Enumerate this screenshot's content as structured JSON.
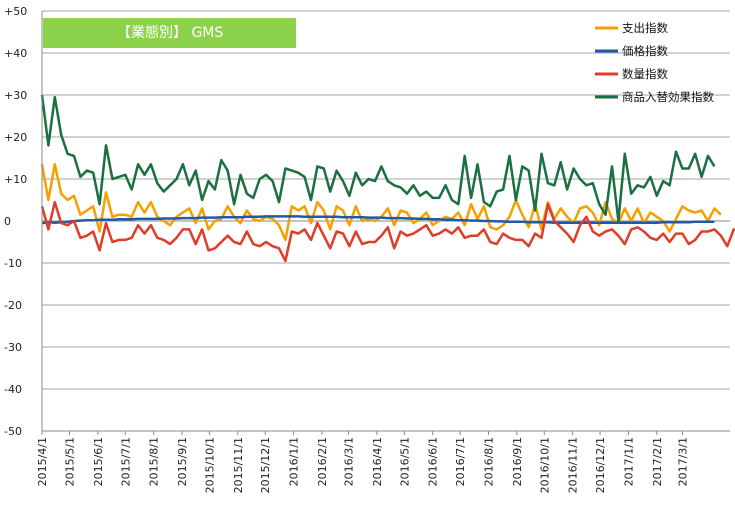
{
  "chart_data": {
    "type": "line",
    "title": "【業態別】 GMS",
    "xlabel": "",
    "ylabel": "",
    "ylim": [
      -50,
      50
    ],
    "y_ticks": [
      "+50",
      "+40",
      "+30",
      "+20",
      "+10",
      "0",
      "-10",
      "-20",
      "-30",
      "-40",
      "-50"
    ],
    "y_tick_values": [
      50,
      40,
      30,
      20,
      10,
      0,
      -10,
      -20,
      -30,
      -40,
      -50
    ],
    "x_tick_labels": [
      "2015/4/1",
      "2015/5/1",
      "2015/6/1",
      "2015/7/1",
      "2015/8/1",
      "2015/9/1",
      "2015/10/1",
      "2015/11/1",
      "2015/12/1",
      "2016/1/1",
      "2016/2/1",
      "2016/3/1",
      "2016/4/1",
      "2016/5/1",
      "2016/6/1",
      "2016/7/1",
      "2016/8/1",
      "2016/9/1",
      "2016/10/1",
      "2016/11/1",
      "2016/12/1",
      "2017/1/1",
      "2017/2/1",
      "2017/3/1"
    ],
    "x_start": "2015/4/1",
    "x_end": "2017/4/22",
    "x_unit": "weekly",
    "grid": "horizontal",
    "legend_position": "top-right",
    "colors": {
      "title_bg": "#8cd24b",
      "axis": "#888888",
      "grid": "#a6a6a6"
    },
    "series": [
      {
        "name": "支出指数",
        "color": "#f5a000",
        "values": [
          13.5,
          5.0,
          13.5,
          6.5,
          5.0,
          6.0,
          1.5,
          2.5,
          3.5,
          -2.5,
          6.8,
          1.0,
          1.5,
          1.5,
          1.0,
          4.5,
          2.0,
          4.5,
          1.0,
          0.0,
          -1.0,
          1.0,
          2.0,
          3.0,
          -0.5,
          3.0,
          -2.0,
          0.0,
          0.5,
          3.5,
          1.0,
          -0.5,
          2.5,
          0.5,
          0.0,
          1.0,
          0.5,
          -1.0,
          -4.5,
          3.5,
          2.5,
          3.5,
          -0.5,
          4.5,
          2.5,
          -2.0,
          3.5,
          2.5,
          -1.0,
          3.5,
          0.0,
          0.5,
          0.0,
          1.0,
          3.0,
          -1.0,
          2.5,
          2.0,
          -0.5,
          0.5,
          2.0,
          -1.0,
          0.0,
          1.0,
          0.5,
          2.0,
          -1.0,
          4.0,
          0.5,
          3.5,
          -1.5,
          -2.0,
          -1.0,
          1.0,
          5.0,
          1.5,
          -1.5,
          4.0,
          -2.0,
          4.5,
          0.5,
          3.0,
          1.0,
          -0.5,
          3.0,
          3.5,
          2.0,
          -1.0,
          4.5,
          0.5,
          -0.5,
          3.0,
          0.0,
          3.0,
          -0.5,
          2.0,
          1.0,
          0.0,
          -2.5,
          0.5,
          3.5,
          2.5,
          2.0,
          2.5,
          0.0,
          3.0,
          1.5
        ]
      },
      {
        "name": "価格指数",
        "color": "#1f5aa8",
        "values": [
          -0.5,
          -0.3,
          -0.4,
          -0.3,
          -0.2,
          0.0,
          0.1,
          0.2,
          0.2,
          0.3,
          0.3,
          0.3,
          0.4,
          0.4,
          0.4,
          0.5,
          0.5,
          0.5,
          0.5,
          0.6,
          0.6,
          0.6,
          0.7,
          0.7,
          0.7,
          0.8,
          0.8,
          0.8,
          0.9,
          0.9,
          0.9,
          0.9,
          1.0,
          1.0,
          1.0,
          1.1,
          1.1,
          1.1,
          1.1,
          1.1,
          1.1,
          1.0,
          1.0,
          1.0,
          1.0,
          1.0,
          1.0,
          0.9,
          0.9,
          0.9,
          0.9,
          0.8,
          0.8,
          0.8,
          0.7,
          0.7,
          0.7,
          0.6,
          0.6,
          0.5,
          0.5,
          0.4,
          0.4,
          0.3,
          0.3,
          0.2,
          0.2,
          0.1,
          0.1,
          0.0,
          0.0,
          -0.1,
          -0.1,
          -0.2,
          -0.2,
          -0.2,
          -0.3,
          -0.3,
          -0.3,
          -0.3,
          -0.4,
          -0.4,
          -0.4,
          -0.4,
          -0.4,
          -0.4,
          -0.4,
          -0.4,
          -0.4,
          -0.4,
          -0.4,
          -0.4,
          -0.4,
          -0.4,
          -0.4,
          -0.4,
          -0.4,
          -0.3,
          -0.3,
          -0.3,
          -0.3,
          -0.3,
          -0.2,
          -0.2,
          -0.2,
          -0.2
        ]
      },
      {
        "name": "数量指数",
        "color": "#e03c28",
        "values": [
          3.5,
          -2.0,
          4.5,
          -0.5,
          -1.0,
          0.0,
          -4.0,
          -3.5,
          -2.5,
          -7.0,
          -0.5,
          -5.0,
          -4.5,
          -4.5,
          -4.0,
          -1.0,
          -3.0,
          -1.0,
          -4.0,
          -4.5,
          -5.5,
          -4.0,
          -2.0,
          -2.0,
          -5.5,
          -2.0,
          -7.0,
          -6.5,
          -5.0,
          -3.5,
          -5.0,
          -5.5,
          -2.5,
          -5.5,
          -6.0,
          -5.0,
          -6.0,
          -6.5,
          -9.5,
          -2.5,
          -3.0,
          -2.0,
          -4.5,
          -0.5,
          -3.5,
          -6.5,
          -2.5,
          -3.0,
          -6.0,
          -2.5,
          -5.5,
          -5.0,
          -5.0,
          -3.5,
          -1.5,
          -6.5,
          -2.5,
          -3.5,
          -3.0,
          -2.0,
          -1.0,
          -3.5,
          -3.0,
          -2.0,
          -3.0,
          -1.5,
          -4.0,
          -3.5,
          -3.5,
          -2.0,
          -5.0,
          -5.5,
          -3.0,
          -4.0,
          -4.5,
          -4.5,
          -6.0,
          -3.0,
          -4.0,
          4.0,
          0.0,
          -1.5,
          -3.0,
          -5.0,
          -1.0,
          1.0,
          -2.5,
          -3.5,
          -2.5,
          -2.0,
          -3.5,
          -5.5,
          -2.0,
          -1.5,
          -2.5,
          -4.0,
          -4.5,
          -3.0,
          -5.0,
          -3.0,
          -3.0,
          -5.5,
          -4.5,
          -2.5,
          -2.5,
          -2.0,
          -3.5,
          -6.0,
          -2.0,
          -2.5
        ]
      },
      {
        "name": "商品入替効果指数",
        "color": "#1a7040",
        "values": [
          30.0,
          18.0,
          29.5,
          20.5,
          16.0,
          15.5,
          10.5,
          12.0,
          11.5,
          4.0,
          18.0,
          10.0,
          10.5,
          11.0,
          7.5,
          13.5,
          11.0,
          13.5,
          9.0,
          7.0,
          8.5,
          10.0,
          13.5,
          8.5,
          12.0,
          5.0,
          9.5,
          7.5,
          14.5,
          12.0,
          4.0,
          11.0,
          6.5,
          5.5,
          10.0,
          11.0,
          9.5,
          4.5,
          12.5,
          12.0,
          11.5,
          10.5,
          5.0,
          13.0,
          12.5,
          7.0,
          12.0,
          9.5,
          6.0,
          11.5,
          8.5,
          10.0,
          9.5,
          13.0,
          9.5,
          8.5,
          8.0,
          6.5,
          8.5,
          6.0,
          7.0,
          5.5,
          5.5,
          8.5,
          5.0,
          4.0,
          15.5,
          5.5,
          13.5,
          4.5,
          3.5,
          7.0,
          7.5,
          15.5,
          5.0,
          13.0,
          12.0,
          2.5,
          16.0,
          9.0,
          8.5,
          14.0,
          7.5,
          12.5,
          10.0,
          8.5,
          9.0,
          4.0,
          1.5,
          13.0,
          0.0,
          16.0,
          6.5,
          8.5,
          8.0,
          10.5,
          6.0,
          9.5,
          8.5,
          16.5,
          12.5,
          12.5,
          16.0,
          10.5,
          15.5,
          13.0
        ]
      }
    ]
  }
}
